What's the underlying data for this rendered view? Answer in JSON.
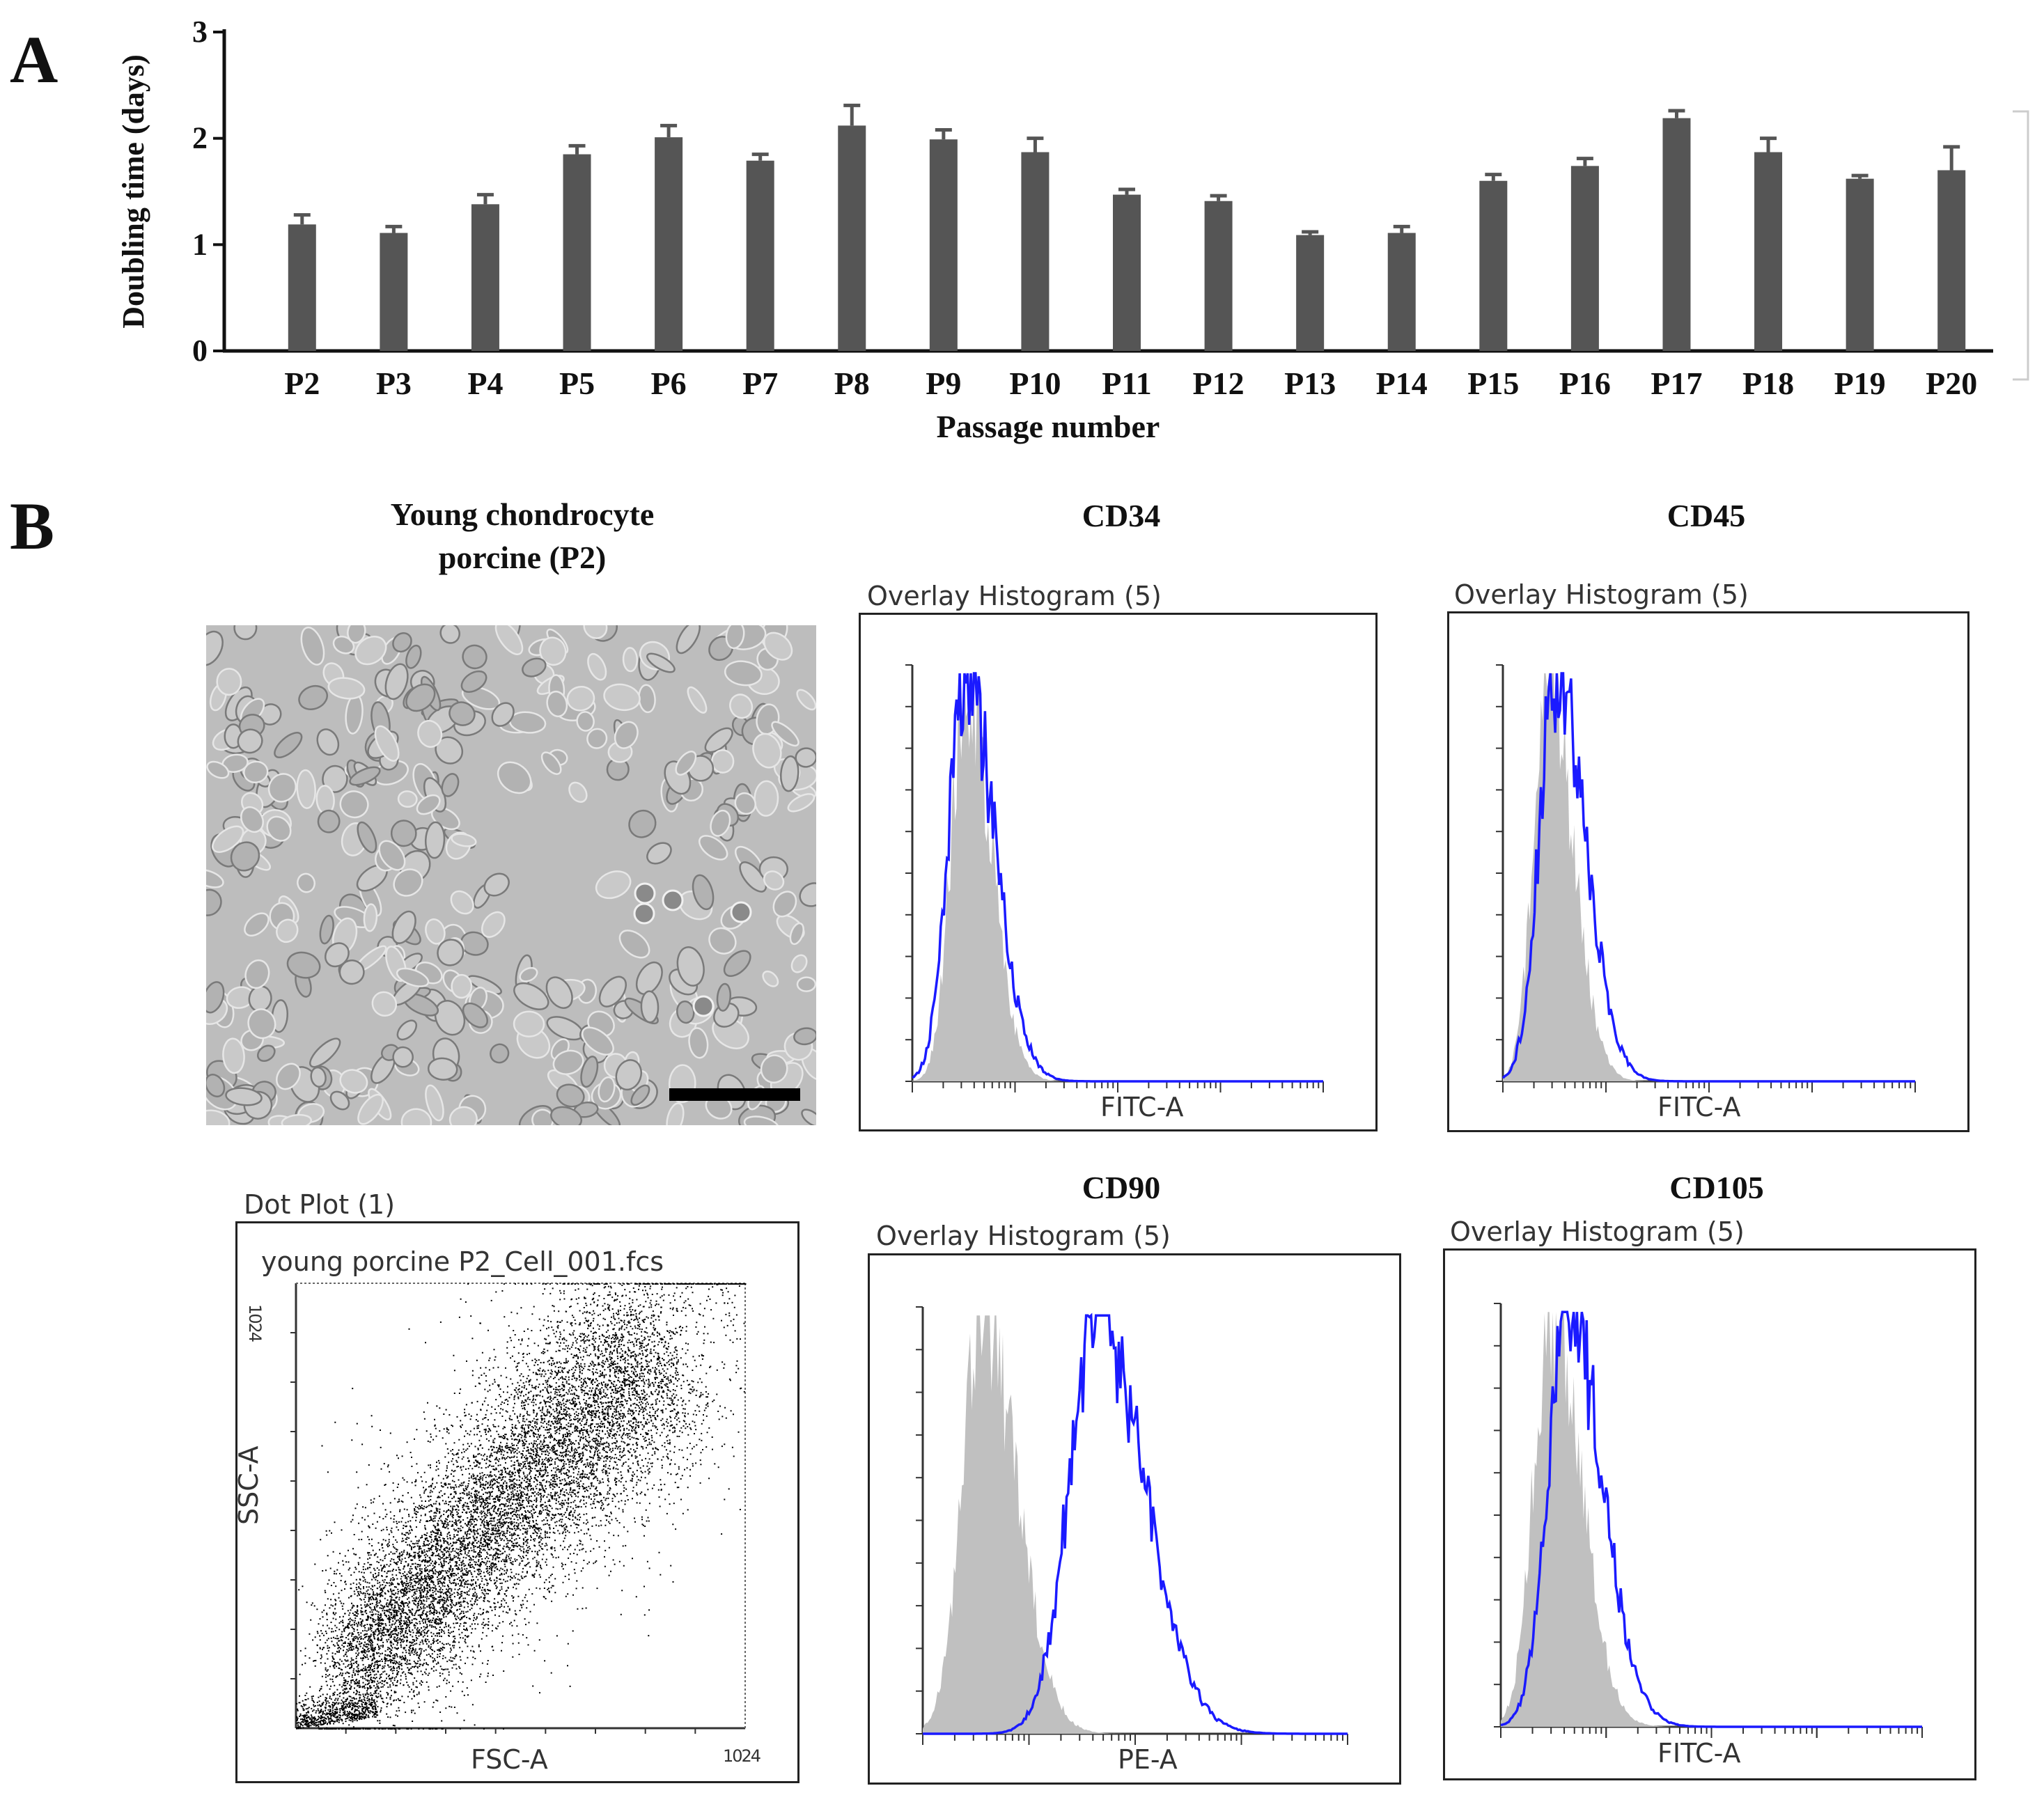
{
  "chart_data": [
    {
      "type": "bar",
      "panel_label": "A",
      "title": "",
      "xlabel": "Passage number",
      "ylabel": "Doubling time (days)",
      "ylim": [
        0,
        3
      ],
      "yticks": [
        "0",
        "1",
        "2",
        "3"
      ],
      "categories": [
        "P2",
        "P3",
        "P4",
        "P5",
        "P6",
        "P7",
        "P8",
        "P9",
        "P10",
        "P11",
        "P12",
        "P13",
        "P14",
        "P15",
        "P16",
        "P17",
        "P18",
        "P19",
        "P20"
      ],
      "values": [
        1.19,
        1.11,
        1.38,
        1.85,
        2.01,
        1.79,
        2.12,
        1.99,
        1.87,
        1.47,
        1.41,
        1.09,
        1.11,
        1.6,
        1.74,
        2.19,
        1.87,
        1.62,
        1.7
      ],
      "errors": [
        0.09,
        0.06,
        0.09,
        0.08,
        0.11,
        0.06,
        0.19,
        0.09,
        0.13,
        0.05,
        0.05,
        0.03,
        0.06,
        0.06,
        0.07,
        0.07,
        0.13,
        0.03,
        0.22
      ]
    },
    {
      "type": "histogram",
      "title": "CD34",
      "subtitle": "Overlay Histogram (5)",
      "xlabel": "FITC-A",
      "series": [
        {
          "name": "control (gray fill)",
          "peak_x": 0.13,
          "width": 0.06,
          "peak": 0.98
        },
        {
          "name": "CD34 (blue line)",
          "peak_x": 0.13,
          "width": 0.07,
          "peak": 1.0
        }
      ]
    },
    {
      "type": "histogram",
      "title": "CD45",
      "subtitle": "Overlay Histogram (5)",
      "xlabel": "FITC-A",
      "series": [
        {
          "name": "control (gray fill)",
          "peak_x": 0.11,
          "width": 0.06,
          "peak": 0.98
        },
        {
          "name": "CD45 (blue line)",
          "peak_x": 0.13,
          "width": 0.07,
          "peak": 1.0
        }
      ]
    },
    {
      "type": "histogram",
      "title": "CD90",
      "subtitle": "Overlay Histogram (5)",
      "xlabel": "PE-A",
      "series": [
        {
          "name": "control (gray fill)",
          "peak_x": 0.14,
          "width": 0.08,
          "peak": 1.0
        },
        {
          "name": "CD90 (blue line)",
          "peak_x": 0.41,
          "width": 0.11,
          "peak": 0.99
        }
      ]
    },
    {
      "type": "histogram",
      "title": "CD105",
      "subtitle": "Overlay Histogram (5)",
      "xlabel": "FITC-A",
      "series": [
        {
          "name": "control (gray fill)",
          "peak_x": 0.12,
          "width": 0.07,
          "peak": 1.0
        },
        {
          "name": "CD105 (blue line)",
          "peak_x": 0.16,
          "width": 0.08,
          "peak": 1.0
        }
      ]
    },
    {
      "type": "scatter",
      "title": "Dot Plot (1)",
      "subtitle": "young porcine P2_Cell_001.fcs",
      "xlabel": "FSC-A",
      "ylabel": "SSC-A",
      "xlim": [
        0,
        1024
      ],
      "ylim": [
        0,
        1024
      ],
      "x_max_label": "1024",
      "y_max_label": "1024"
    }
  ],
  "panel_b": {
    "label": "B",
    "image_title": "Young chondrocyte porcine (P2)",
    "image_alt": "phase-contrast micrograph of young porcine chondrocytes"
  },
  "colors": {
    "bar": "#555555",
    "histogram_control": "#c0c0c0",
    "histogram_marker": "#1a1aff",
    "dots": "#000000"
  }
}
